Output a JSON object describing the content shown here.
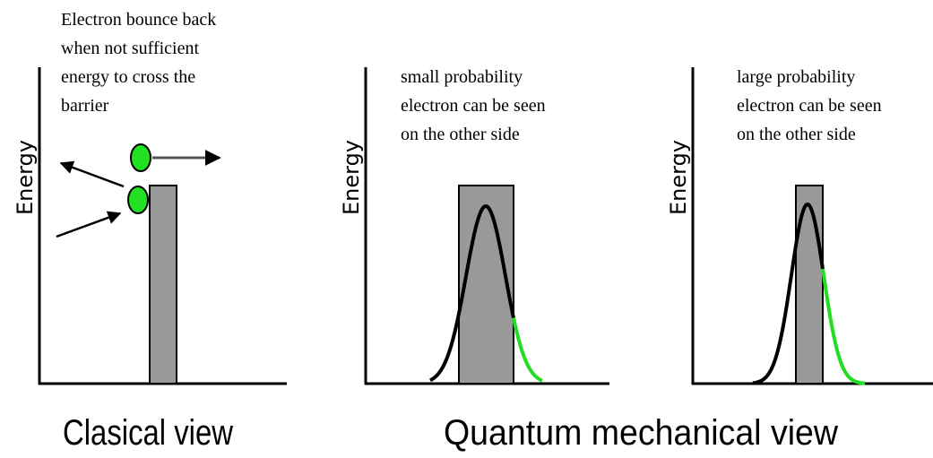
{
  "panels": [
    {
      "annotation": [
        "Electron bounce back",
        "when not sufficient",
        "energy to cross the",
        "barrier"
      ],
      "axis_label": "Energy"
    },
    {
      "annotation": [
        "small probability",
        "electron can be seen",
        "on the other side"
      ],
      "axis_label": "Energy"
    },
    {
      "annotation": [
        "large probability",
        "electron can be seen",
        "on the other side"
      ],
      "axis_label": "Energy"
    }
  ],
  "captions": [
    "Clasical view",
    "Quantum mechanical view"
  ]
}
